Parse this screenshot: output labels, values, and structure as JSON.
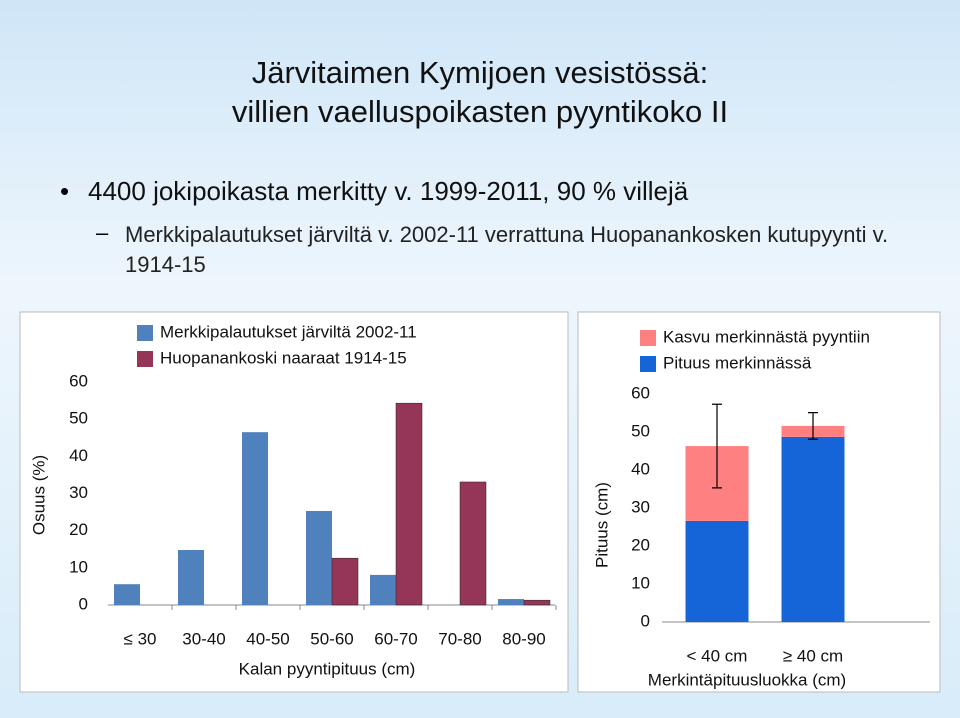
{
  "title": [
    "Järvitaimen Kymijoen vesistössä:",
    "villien vaelluspoikasten pyyntikoko II"
  ],
  "bullets": [
    {
      "text": "4400 jokipoikasta merkitty v. 1999-2011, 90 % villejä",
      "sub": [
        "Merkkipalautukset järviltä v. 2002-11 verrattuna Huopanankosken kutupyynti v. 1914-15"
      ]
    }
  ],
  "chart_data": [
    {
      "type": "bar",
      "x_label": "Kalan pyyntipituus (cm)",
      "y_label": "Osuus (%)",
      "categories": [
        "≤ 30",
        "30-40",
        "40-50",
        "50-60",
        "60-70",
        "70-80",
        "80-90"
      ],
      "series": [
        {
          "name": "Merkkipalautukset järviltä 2002-11",
          "color": "#4f81bd",
          "values": [
            5.6,
            14.8,
            46.5,
            25.3,
            8.1,
            0,
            1.6
          ]
        },
        {
          "name": "Huopanankoski naaraat 1914-15",
          "color": "#953659",
          "values": [
            0,
            0,
            0,
            12.6,
            54.3,
            33.1,
            1.3
          ]
        }
      ],
      "ylim": [
        0,
        60
      ],
      "yticks": [
        0,
        10,
        20,
        30,
        40,
        50,
        60
      ]
    },
    {
      "type": "stacked_bar",
      "x_label": "Merkintäpituusluokka (cm)",
      "y_label": "Pituus (cm)",
      "categories": [
        "< 40 cm",
        "≥ 40 cm"
      ],
      "series": [
        {
          "name": "Pituus merkinnässä",
          "color": "#1565d8",
          "values": [
            26.6,
            48.7
          ]
        },
        {
          "name": "Kasvu merkinnästä pyyntiin",
          "color": "#ff8080",
          "values": [
            19.7,
            2.9
          ],
          "errors": [
            11,
            3.5
          ]
        }
      ],
      "ylim": [
        0,
        60
      ],
      "yticks": [
        0,
        10,
        20,
        30,
        40,
        50,
        60
      ]
    }
  ]
}
